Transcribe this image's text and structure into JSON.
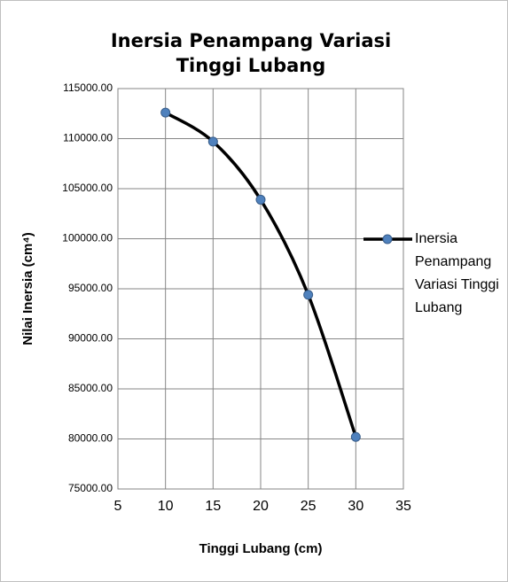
{
  "chart_data": {
    "type": "line",
    "title": "Inersia Penampang Variasi Tinggi Lubang",
    "x_label": "Tinggi Lubang (cm)",
    "y_label": "Nilai Inersia (cm⁴)",
    "x": [
      10,
      15,
      20,
      25,
      30
    ],
    "series": [
      {
        "name": "Inersia Penampang Variasi Tinggi Lubang",
        "color": "#000000",
        "marker_color": "#4f81bd",
        "values": [
          112600,
          109700,
          103900,
          94400,
          80200
        ]
      }
    ],
    "xlim": [
      5,
      35
    ],
    "xticks": [
      5,
      10,
      15,
      20,
      25,
      30,
      35
    ],
    "ylim": [
      75000,
      115000
    ],
    "yticks": [
      {
        "value": 75000,
        "label": "75000.00"
      },
      {
        "value": 80000,
        "label": "80000.00"
      },
      {
        "value": 85000,
        "label": "85000.00"
      },
      {
        "value": 90000,
        "label": "90000.00"
      },
      {
        "value": 95000,
        "label": "95000.00"
      },
      {
        "value": 100000,
        "label": "100000.00"
      },
      {
        "value": 105000,
        "label": "105000.00"
      },
      {
        "value": 110000,
        "label": "110000.00"
      },
      {
        "value": 115000,
        "label": "115000.00"
      }
    ],
    "grid": true,
    "smooth": true,
    "legend": "right"
  }
}
